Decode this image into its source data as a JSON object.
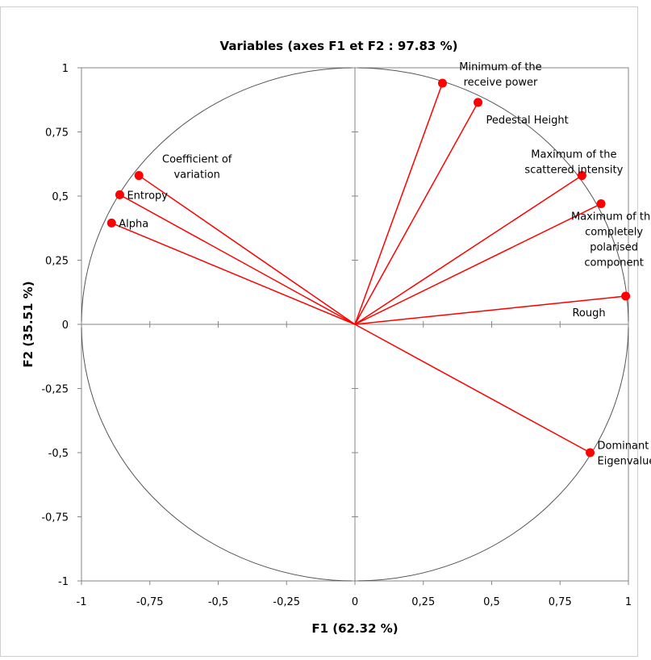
{
  "chart_data": {
    "type": "scatter",
    "title": "Variables (axes F1 et F2 : 97.83 %)",
    "xlabel": "F1 (62.32 %)",
    "ylabel": "F2 (35.51 %)",
    "xlim": [
      -1,
      1
    ],
    "ylim": [
      -1,
      1
    ],
    "x_ticks": [
      -1,
      -0.75,
      -0.5,
      -0.25,
      0,
      0.25,
      0.5,
      0.75,
      1
    ],
    "y_ticks": [
      -1,
      -0.75,
      -0.5,
      -0.25,
      0,
      0.25,
      0.5,
      0.75,
      1
    ],
    "x_tick_labels": [
      "-1",
      "-0,75",
      "-0,5",
      "-0,25",
      "0",
      "0,25",
      "0,5",
      "0,75",
      "1"
    ],
    "y_tick_labels": [
      "-1",
      "-0,75",
      "-0,5",
      "-0,25",
      "0",
      "0,25",
      "0,5",
      "0,75",
      "1"
    ],
    "grid": false,
    "correlation_circle": true,
    "vector_color": "#ff0000",
    "points": [
      {
        "label": [
          "Minimum of the",
          "receive power"
        ],
        "x": 0.32,
        "y": 0.94,
        "label_side": "right-top"
      },
      {
        "label": [
          "Pedestal Height"
        ],
        "x": 0.45,
        "y": 0.865,
        "label_side": "right-below"
      },
      {
        "label": [
          "Coefficient of",
          "variation"
        ],
        "x": -0.79,
        "y": 0.58,
        "label_side": "right-top"
      },
      {
        "label": [
          "Entropy"
        ],
        "x": -0.86,
        "y": 0.505,
        "label_side": "right"
      },
      {
        "label": [
          "Alpha"
        ],
        "x": -0.89,
        "y": 0.395,
        "label_side": "right"
      },
      {
        "label": [
          "Maximum of the",
          "scattered intensity"
        ],
        "x": 0.83,
        "y": 0.58,
        "label_side": "top"
      },
      {
        "label": [
          "Maximum of the",
          "completely",
          "polarised",
          "component"
        ],
        "x": 0.9,
        "y": 0.47,
        "label_side": "below"
      },
      {
        "label": [
          "Rough"
        ],
        "x": 0.99,
        "y": 0.11,
        "label_side": "left-below"
      },
      {
        "label": [
          "Dominant",
          "Eigenvalue"
        ],
        "x": 0.86,
        "y": -0.5,
        "label_side": "right"
      }
    ]
  }
}
